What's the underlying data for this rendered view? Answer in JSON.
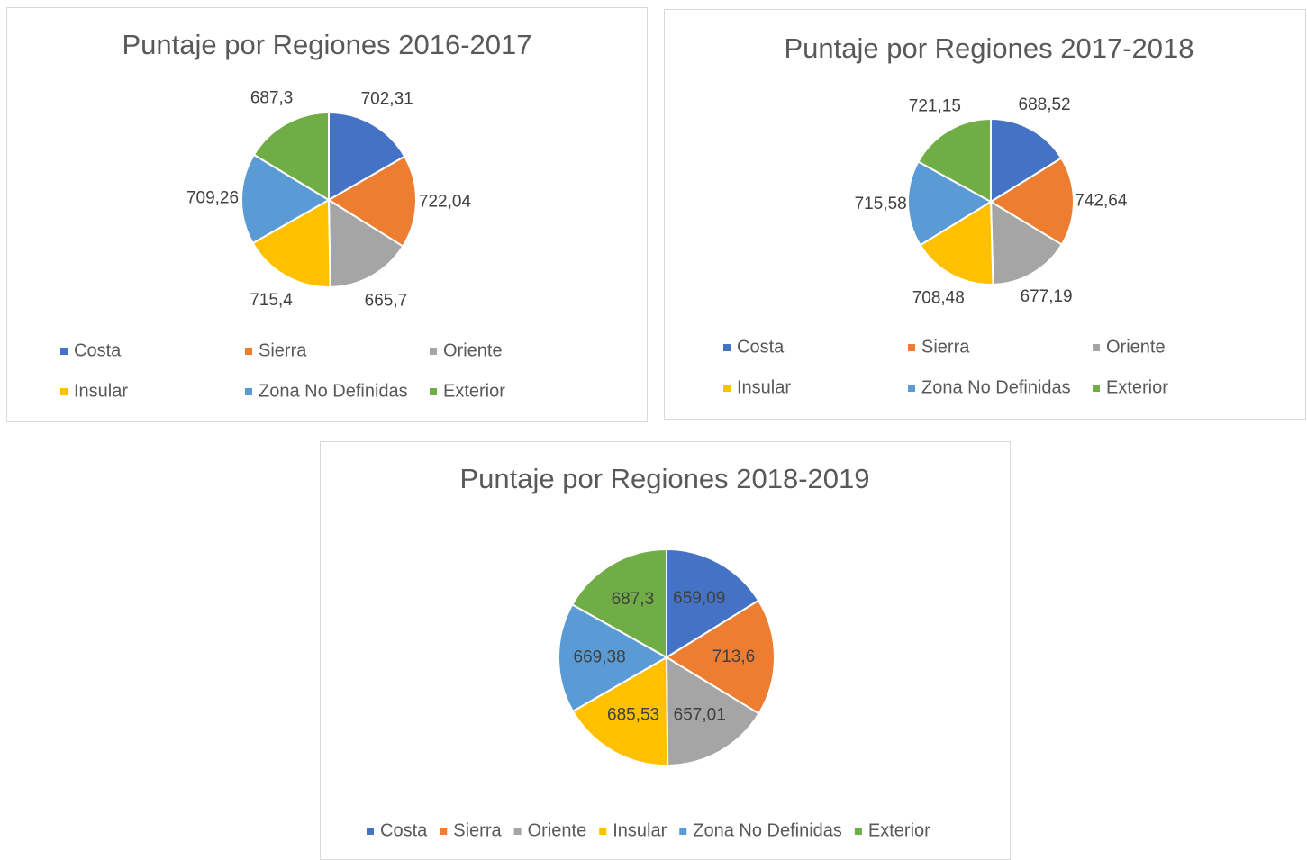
{
  "chart_data": [
    {
      "type": "pie",
      "title": "Puntaje por Regiones 2016-2017",
      "categories": [
        "Costa",
        "Sierra",
        "Oriente",
        "Insular",
        "Zona No Definidas",
        "Exterior"
      ],
      "values": [
        702.31,
        722.04,
        665.7,
        715.4,
        709.26,
        687.3
      ],
      "value_labels": [
        "702,31",
        "722,04",
        "665,7",
        "715,4",
        "709,26",
        "687,3"
      ],
      "colors": [
        "#4472c4",
        "#ed7d31",
        "#a5a5a5",
        "#ffc000",
        "#5b9bd5",
        "#70ad47"
      ],
      "label_position": "outside",
      "legend": "bottom"
    },
    {
      "type": "pie",
      "title": "Puntaje por Regiones 2017-2018",
      "categories": [
        "Costa",
        "Sierra",
        "Oriente",
        "Insular",
        "Zona No Definidas",
        "Exterior"
      ],
      "values": [
        688.52,
        742.64,
        677.19,
        708.48,
        715.58,
        721.15
      ],
      "value_labels": [
        "688,52",
        "742,64",
        "677,19",
        "708,48",
        "715,58",
        "721,15"
      ],
      "colors": [
        "#4472c4",
        "#ed7d31",
        "#a5a5a5",
        "#ffc000",
        "#5b9bd5",
        "#70ad47"
      ],
      "label_position": "outside",
      "legend": "bottom"
    },
    {
      "type": "pie",
      "title": "Puntaje por Regiones 2018-2019",
      "categories": [
        "Costa",
        "Sierra",
        "Oriente",
        "Insular",
        "Zona No Definidas",
        "Exterior"
      ],
      "values": [
        659.09,
        713.6,
        657.01,
        685.53,
        669.38,
        687.3
      ],
      "value_labels": [
        "659,09",
        "713,6",
        "657,01",
        "685,53",
        "669,38",
        "687,3"
      ],
      "colors": [
        "#4472c4",
        "#ed7d31",
        "#a5a5a5",
        "#ffc000",
        "#5b9bd5",
        "#70ad47"
      ],
      "label_position": "inside",
      "legend": "bottom"
    }
  ]
}
